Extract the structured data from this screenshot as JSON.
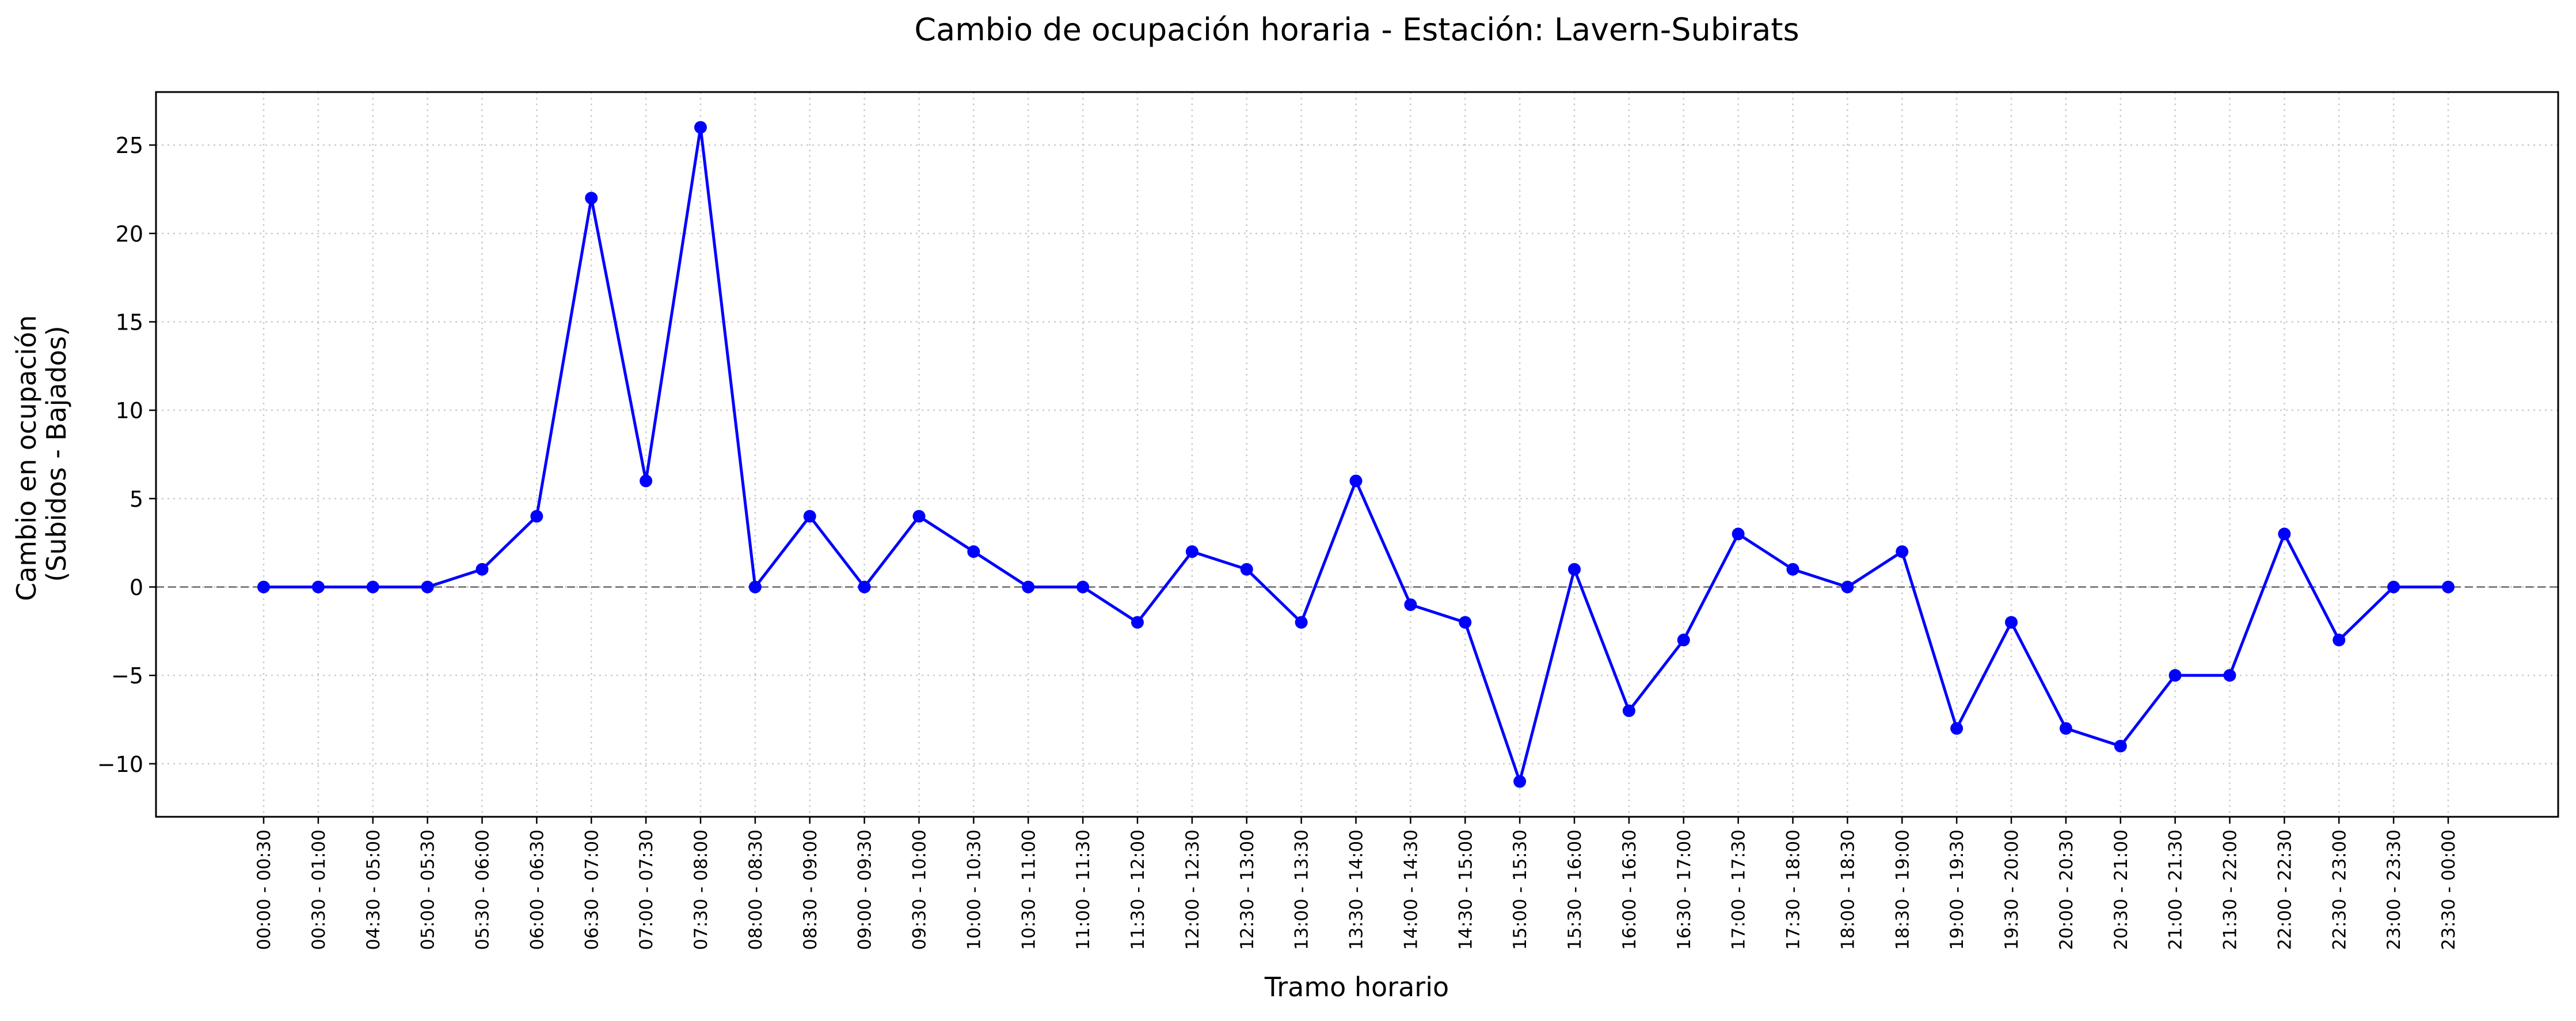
{
  "chart_data": {
    "type": "line",
    "title": "Cambio de ocupación horaria - Estación: Lavern-Subirats",
    "xlabel": "Tramo horario",
    "ylabel_lines": [
      "Cambio en ocupación",
      "(Subidos - Bajados)"
    ],
    "categories": [
      "00:00 - 00:30",
      "00:30 - 01:00",
      "04:30 - 05:00",
      "05:00 - 05:30",
      "05:30 - 06:00",
      "06:00 - 06:30",
      "06:30 - 07:00",
      "07:00 - 07:30",
      "07:30 - 08:00",
      "08:00 - 08:30",
      "08:30 - 09:00",
      "09:00 - 09:30",
      "09:30 - 10:00",
      "10:00 - 10:30",
      "10:30 - 11:00",
      "11:00 - 11:30",
      "11:30 - 12:00",
      "12:00 - 12:30",
      "12:30 - 13:00",
      "13:00 - 13:30",
      "13:30 - 14:00",
      "14:00 - 14:30",
      "14:30 - 15:00",
      "15:00 - 15:30",
      "15:30 - 16:00",
      "16:00 - 16:30",
      "16:30 - 17:00",
      "17:00 - 17:30",
      "17:30 - 18:00",
      "18:00 - 18:30",
      "18:30 - 19:00",
      "19:00 - 19:30",
      "19:30 - 20:00",
      "20:00 - 20:30",
      "20:30 - 21:00",
      "21:00 - 21:30",
      "21:30 - 22:00",
      "22:00 - 22:30",
      "22:30 - 23:00",
      "23:00 - 23:30",
      "23:30 - 00:00"
    ],
    "values": [
      0,
      0,
      0,
      0,
      1,
      4,
      22,
      6,
      26,
      0,
      4,
      0,
      4,
      2,
      0,
      0,
      -2,
      2,
      1,
      -2,
      6,
      -1,
      -2,
      -11,
      1,
      -7,
      -3,
      3,
      1,
      0,
      2,
      -8,
      -2,
      -8,
      -9,
      -5,
      -5,
      3,
      -3,
      0,
      0
    ],
    "ylim": [
      -13,
      28
    ],
    "yticks": [
      -10,
      -5,
      0,
      5,
      10,
      15,
      20,
      25
    ],
    "grid": true,
    "zero_line": true,
    "colors": {
      "line": "#0000ff",
      "marker": "#0000ff",
      "grid": "#cccccc",
      "zero_line": "#808080",
      "axes": "#000000"
    }
  }
}
